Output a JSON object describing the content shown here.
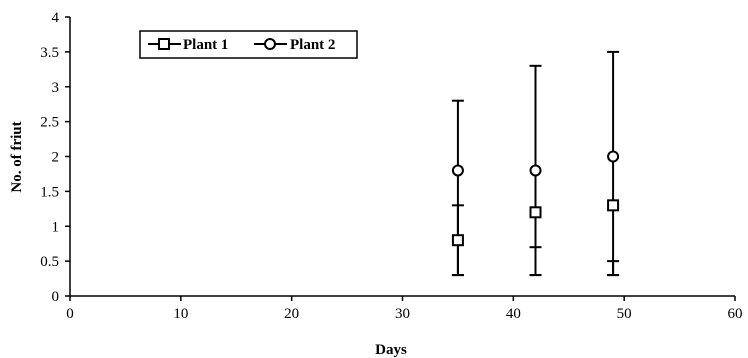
{
  "chart_data": {
    "type": "scatter",
    "xlabel": "Days",
    "ylabel": "No. of friut",
    "xlim": [
      0,
      60
    ],
    "ylim": [
      0,
      4
    ],
    "x_ticks": [
      "0",
      "10",
      "20",
      "30",
      "40",
      "50",
      "60"
    ],
    "y_ticks": [
      "0",
      "0.5",
      "1",
      "1.5",
      "2",
      "2.5",
      "3",
      "3.5",
      "4"
    ],
    "grid": false,
    "legend_position": "top-left",
    "series": [
      {
        "name": "Plant 1",
        "marker": "square",
        "color": "#000000",
        "points": [
          {
            "x": 35,
            "y": 0.8,
            "err_low": 0.3,
            "err_high": 1.3
          },
          {
            "x": 42,
            "y": 1.2,
            "err_low": 0.3,
            "err_high": 0.7
          },
          {
            "x": 49,
            "y": 1.3,
            "err_low": 0.3,
            "err_high": 0.5
          }
        ]
      },
      {
        "name": "Plant 2",
        "marker": "circle",
        "color": "#000000",
        "points": [
          {
            "x": 35,
            "y": 1.8,
            "err_low": 0.3,
            "err_high": 2.8
          },
          {
            "x": 42,
            "y": 1.8,
            "err_low": 0.3,
            "err_high": 3.3
          },
          {
            "x": 49,
            "y": 2.0,
            "err_low": 0.3,
            "err_high": 3.5
          }
        ]
      }
    ]
  }
}
